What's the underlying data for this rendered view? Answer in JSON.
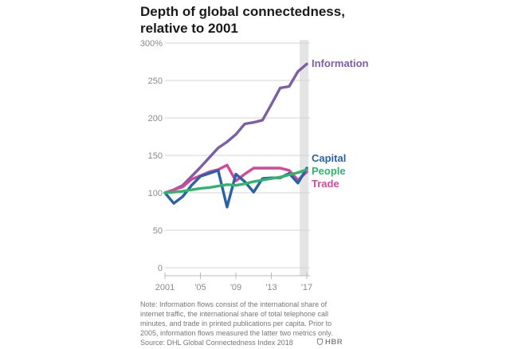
{
  "chart_data": {
    "type": "line",
    "title_lines": [
      "Depth of global connectedness,",
      "relative to 2001"
    ],
    "x": [
      2001,
      2002,
      2003,
      2004,
      2005,
      2006,
      2007,
      2008,
      2009,
      2010,
      2011,
      2012,
      2013,
      2014,
      2015,
      2016,
      2017
    ],
    "xlim": [
      2001,
      2017
    ],
    "ylim": [
      0,
      300
    ],
    "yticks": [
      0,
      50,
      100,
      150,
      200,
      250,
      300
    ],
    "ytick_labels": [
      "0",
      "50",
      "100",
      "150",
      "200",
      "250",
      "300%"
    ],
    "xticks": [
      2001,
      2005,
      2009,
      2013,
      2017
    ],
    "xtick_labels": [
      "2001",
      "'05",
      "'09",
      "'13",
      "'17"
    ],
    "shaded_region": [
      2016.2,
      2017.2
    ],
    "series": [
      {
        "name": "Information",
        "color": "#7b5ea7",
        "values": [
          100,
          104,
          110,
          122,
          134,
          147,
          160,
          168,
          178,
          192,
          194,
          197,
          218,
          240,
          242,
          262,
          272
        ]
      },
      {
        "name": "Trade",
        "color": "#d5479a",
        "values": [
          100,
          104,
          108,
          118,
          123,
          128,
          131,
          137,
          116,
          125,
          133,
          133,
          133,
          133,
          130,
          117,
          128
        ]
      },
      {
        "name": "Capital",
        "color": "#2a62a8",
        "values": [
          100,
          86,
          95,
          110,
          122,
          126,
          130,
          81,
          125,
          115,
          101,
          119,
          120,
          120,
          126,
          113,
          133
        ]
      },
      {
        "name": "People",
        "color": "#30b46c",
        "values": [
          100,
          101,
          102,
          104,
          106,
          107,
          109,
          111,
          110,
          112,
          115,
          117,
          119,
          121,
          124,
          127,
          131
        ]
      }
    ]
  },
  "note_lines": [
    "Note: Information flows consist of the international share of",
    "internet traffic, the international share of total telephone call",
    "minutes, and trade in printed publications per capita. Prior to",
    "2005, information flows measured the latter two metrics only.",
    "Source: DHL Global Connectedness Index 2018"
  ],
  "brand": "HBR"
}
